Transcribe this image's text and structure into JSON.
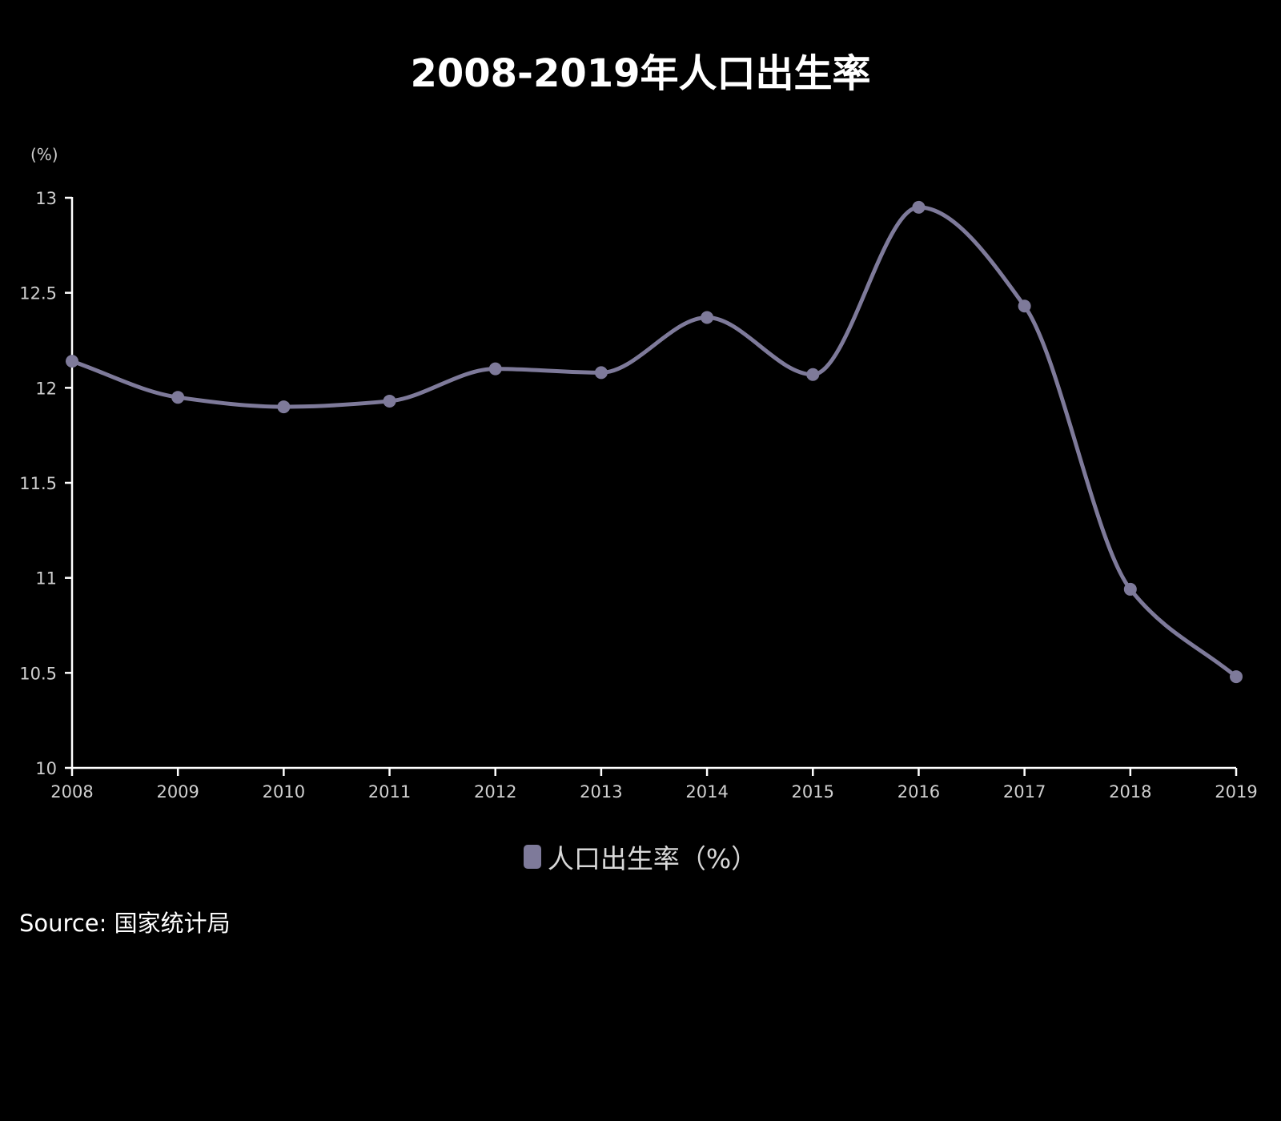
{
  "chart_data": {
    "type": "line",
    "title": "2008-2019年人口出生率",
    "unit_label": "(%)",
    "categories": [
      "2008",
      "2009",
      "2010",
      "2011",
      "2012",
      "2013",
      "2014",
      "2015",
      "2016",
      "2017",
      "2018",
      "2019"
    ],
    "series": [
      {
        "name": "人口出生率（%）",
        "values": [
          12.14,
          11.95,
          11.9,
          11.93,
          12.1,
          12.08,
          12.37,
          12.07,
          12.95,
          12.43,
          10.94,
          10.48
        ],
        "color": "#7e7a9a"
      }
    ],
    "ylim": [
      10,
      13
    ],
    "yticks": [
      "10",
      "10.5",
      "11",
      "11.5",
      "12",
      "12.5",
      "13"
    ],
    "legend_position": "bottom-center",
    "grid": false
  },
  "source_text": "Source: 国家统计局",
  "colors": {
    "background": "#000000",
    "axis": "#ffffff",
    "text": "#cfcfcf"
  }
}
